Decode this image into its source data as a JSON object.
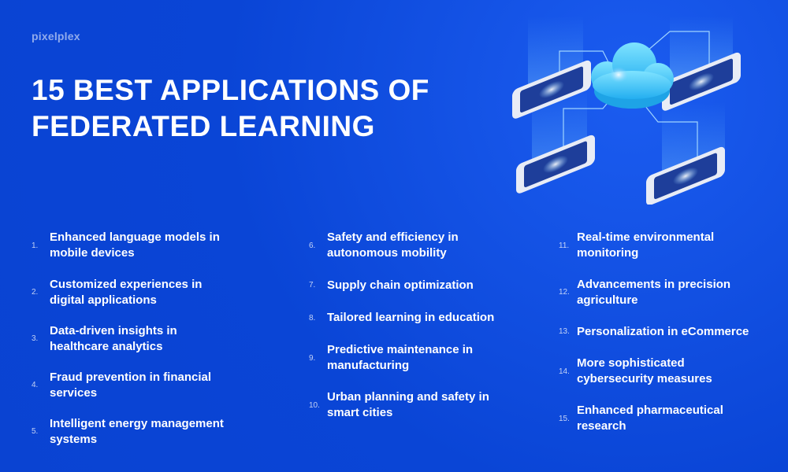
{
  "brand": {
    "name": "pixelplex"
  },
  "title": {
    "line1": "15 BEST APPLICATIONS OF",
    "line2": "FEDERATED LEARNING"
  },
  "columns": [
    {
      "items": [
        {
          "num": "1.",
          "label": "Enhanced language models in mobile devices"
        },
        {
          "num": "2.",
          "label": "Customized experiences in digital applications"
        },
        {
          "num": "3.",
          "label": "Data-driven insights in healthcare analytics"
        },
        {
          "num": "4.",
          "label": "Fraud prevention in financial services"
        },
        {
          "num": "5.",
          "label": "Intelligent energy management systems"
        }
      ]
    },
    {
      "items": [
        {
          "num": "6.",
          "label": "Safety and efficiency in autonomous mobility"
        },
        {
          "num": "7.",
          "label": "Supply chain optimization"
        },
        {
          "num": "8.",
          "label": "Tailored learning in education"
        },
        {
          "num": "9.",
          "label": "Predictive maintenance in manufacturing"
        },
        {
          "num": "10.",
          "label": "Urban planning and safety in smart cities"
        }
      ]
    },
    {
      "items": [
        {
          "num": "11.",
          "label": "Real-time environmental monitoring"
        },
        {
          "num": "12.",
          "label": "Advancements in precision agriculture"
        },
        {
          "num": "13.",
          "label": "Personalization in eCommerce"
        },
        {
          "num": "14.",
          "label": "More sophisticated cybersecurity measures"
        },
        {
          "num": "15.",
          "label": "Enhanced pharmaceutical research"
        }
      ]
    }
  ],
  "colors": {
    "background": "#0a45d6",
    "cloud": "#39c5f5",
    "phone": "#e8ecf6",
    "screen": "#1e3e9a"
  }
}
